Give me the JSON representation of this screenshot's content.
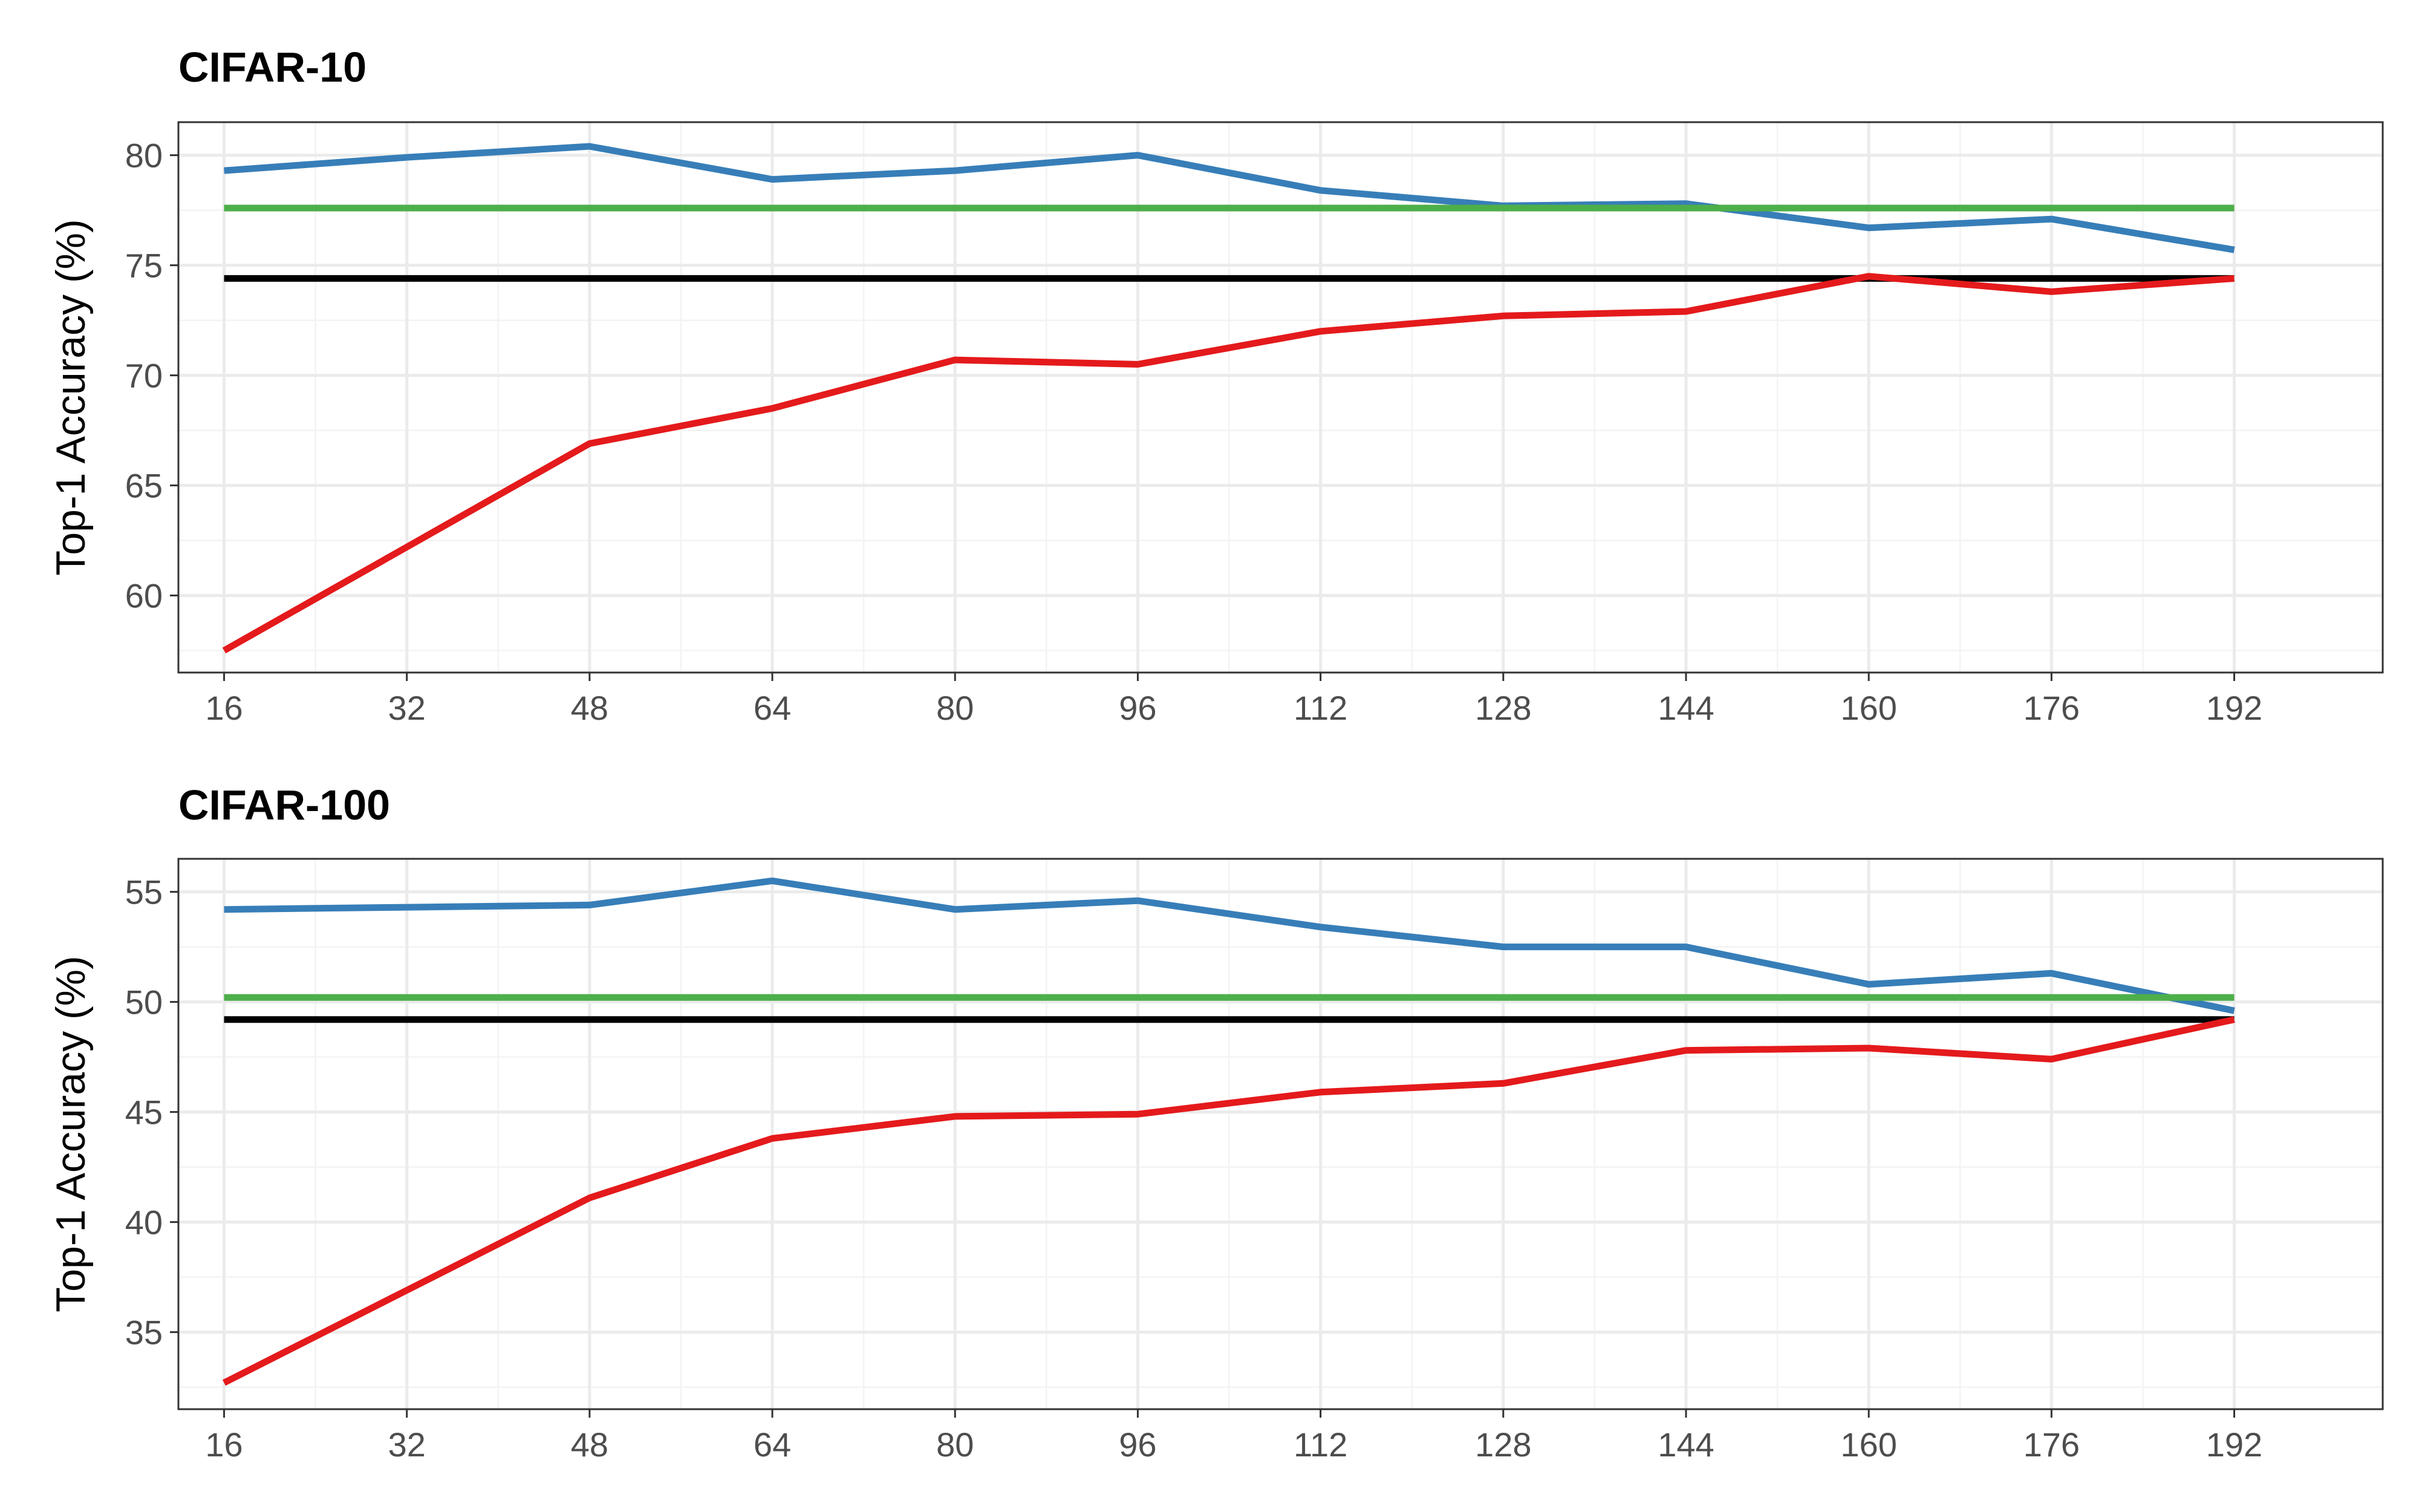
{
  "chart_data": [
    {
      "type": "line",
      "title": "CIFAR-10",
      "xlabel": "",
      "ylabel": "Top-1 Accuracy (%)",
      "x": [
        16,
        32,
        48,
        64,
        80,
        96,
        112,
        128,
        144,
        160,
        176,
        192
      ],
      "xlim": [
        12,
        205
      ],
      "ylim": [
        56.5,
        81.5
      ],
      "yticks": [
        60,
        65,
        70,
        75,
        80
      ],
      "grid": true,
      "legend": "none",
      "series": [
        {
          "color": "#377eb8",
          "values": [
            79.3,
            79.9,
            80.4,
            78.9,
            79.3,
            80.0,
            78.4,
            77.7,
            77.8,
            76.7,
            77.1,
            75.7
          ]
        },
        {
          "color": "#4daf4a",
          "values": [
            77.6,
            77.6,
            77.6,
            77.6,
            77.6,
            77.6,
            77.6,
            77.6,
            77.6,
            77.6,
            77.6,
            77.6
          ]
        },
        {
          "color": "#000000",
          "values": [
            74.4,
            74.4,
            74.4,
            74.4,
            74.4,
            74.4,
            74.4,
            74.4,
            74.4,
            74.4,
            74.4,
            74.4
          ]
        },
        {
          "color": "#e41a1c",
          "values": [
            57.5,
            62.2,
            66.9,
            68.5,
            70.7,
            70.5,
            72.0,
            72.7,
            72.9,
            74.5,
            73.8,
            74.4
          ]
        }
      ]
    },
    {
      "type": "line",
      "title": "CIFAR-100",
      "xlabel": "",
      "ylabel": "Top-1 Accuracy (%)",
      "x": [
        16,
        32,
        48,
        64,
        80,
        96,
        112,
        128,
        144,
        160,
        176,
        192
      ],
      "xlim": [
        12,
        205
      ],
      "ylim": [
        31.5,
        56.5
      ],
      "yticks": [
        35,
        40,
        45,
        50,
        55
      ],
      "grid": true,
      "legend": "none",
      "series": [
        {
          "color": "#377eb8",
          "values": [
            54.2,
            54.3,
            54.4,
            55.5,
            54.2,
            54.6,
            53.4,
            52.5,
            52.5,
            50.8,
            51.3,
            49.6
          ]
        },
        {
          "color": "#4daf4a",
          "values": [
            50.2,
            50.2,
            50.2,
            50.2,
            50.2,
            50.2,
            50.2,
            50.2,
            50.2,
            50.2,
            50.2,
            50.2
          ]
        },
        {
          "color": "#000000",
          "values": [
            49.2,
            49.2,
            49.2,
            49.2,
            49.2,
            49.2,
            49.2,
            49.2,
            49.2,
            49.2,
            49.2,
            49.2
          ]
        },
        {
          "color": "#e41a1c",
          "values": [
            32.7,
            36.9,
            41.1,
            43.8,
            44.8,
            44.9,
            45.9,
            46.3,
            47.8,
            47.9,
            47.4,
            49.2
          ]
        }
      ]
    }
  ]
}
